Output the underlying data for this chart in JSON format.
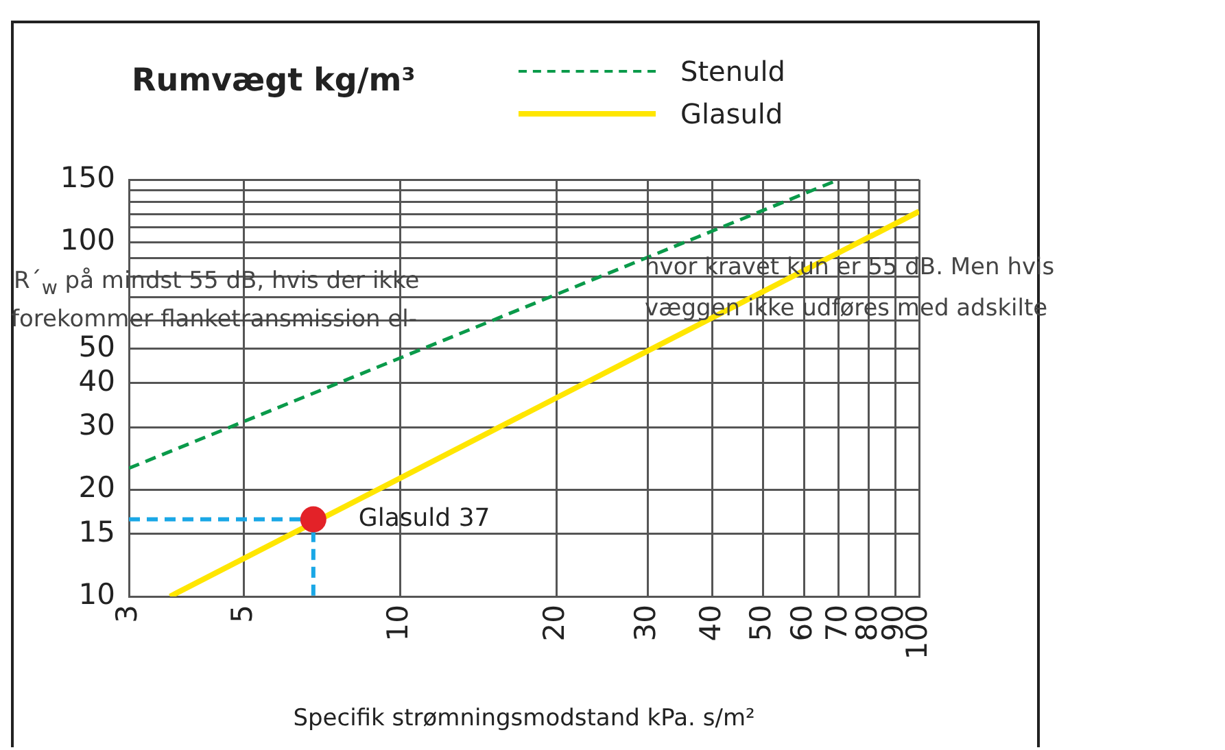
{
  "chart_data": {
    "type": "line",
    "title": "Rumvægt kg/m³",
    "xlabel": "Specifik strømningsmodstand kPa. s/m²",
    "log": "xy",
    "xlim": [
      3,
      100
    ],
    "ylim": [
      10,
      150
    ],
    "xticks": [
      3,
      5,
      10,
      20,
      30,
      40,
      50,
      60,
      70,
      80,
      90,
      100
    ],
    "yticks": [
      10,
      15,
      20,
      30,
      40,
      50,
      {
        "value": 60,
        "label": null
      },
      {
        "value": 70,
        "label": null
      },
      {
        "value": 80,
        "label": null
      },
      {
        "value": 90,
        "label": null
      },
      100,
      {
        "value": 110,
        "label": null
      },
      {
        "value": 120,
        "label": null
      },
      {
        "value": 130,
        "label": null
      },
      {
        "value": 140,
        "label": null
      },
      150
    ],
    "grid": true,
    "legend": "top",
    "series": [
      {
        "name": "Stenuld",
        "color": "#0a9a4a",
        "line_style": "dashed",
        "x": [
          3,
          70
        ],
        "values": [
          23,
          150
        ]
      },
      {
        "name": "Glasuld",
        "color": "#ffe600",
        "line_style": "solid",
        "x": [
          3.6,
          100
        ],
        "values": [
          10,
          122
        ]
      },
      {
        "color": "#1aa7e6",
        "line_style": "dashed",
        "x": [
          3,
          6.8,
          6.8
        ],
        "values": [
          16.5,
          16.5,
          10
        ]
      },
      {
        "type": "scatter",
        "color": "#e32228",
        "marker": "circle",
        "x": [
          6.8
        ],
        "values": [
          16.5
        ]
      }
    ],
    "annotations": [
      {
        "text": "Glasuld 37",
        "x": 6.8,
        "y": 16.5
      },
      "R´$_{w}$ på mindst 55 dB, hvis der ikke",
      "forekommer flanketransmission el-",
      "hvor kravet kun er 55 dB. Men hvis",
      "væggen ikke udføres med adskilte"
    ]
  }
}
